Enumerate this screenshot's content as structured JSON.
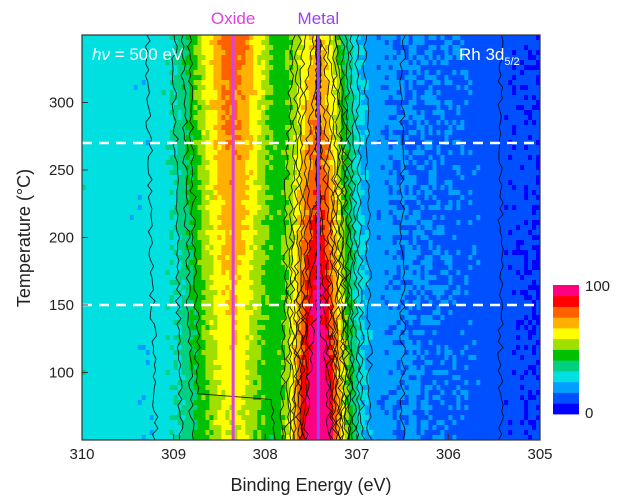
{
  "chart_data": {
    "type": "heatmap",
    "title": "",
    "xlabel": "Binding Energy (eV)",
    "ylabel": "Temperature (°C)",
    "xlim": [
      310,
      305
    ],
    "ylim": [
      50,
      350
    ],
    "x_reversed": true,
    "xticks": [
      310,
      309,
      308,
      307,
      306,
      305
    ],
    "yticks": [
      100,
      150,
      200,
      250,
      300
    ],
    "annotations": {
      "photon_energy": {
        "prefix": "hν",
        "text": " = 500 eV"
      },
      "peak_label": {
        "base": "Rh 3d",
        "sub": "5/2"
      }
    },
    "reference_lines": [
      {
        "name": "Oxide",
        "x": 308.35,
        "color": "#e040e0"
      },
      {
        "name": "Metal",
        "x": 307.42,
        "color": "#9a40ff"
      }
    ],
    "dashed_lines_y": [
      150,
      270
    ],
    "colorbar": {
      "min": 0,
      "max": 100,
      "min_label": "0",
      "max_label": "100"
    },
    "intensity_model": {
      "metal_peak_center_eV": 307.42,
      "oxide_peak_center_eV": 308.35,
      "metal_peak_amplitude_at_60C": 85,
      "metal_peak_amplitude_at_300C": 45,
      "oxide_peak_amplitude_at_60C": 35,
      "oxide_peak_amplitude_at_300C": 55,
      "background_high_BE": 30,
      "background_low_BE": 8
    }
  },
  "colors": {
    "colormap": [
      "#0000ff",
      "#0050ff",
      "#00a0ff",
      "#00e0e0",
      "#00d080",
      "#00c000",
      "#a0e000",
      "#ffff00",
      "#ffb000",
      "#ff6000",
      "#ff0000",
      "#ff0080"
    ],
    "dashed_line": "#ffffff",
    "contour": "#000000"
  }
}
